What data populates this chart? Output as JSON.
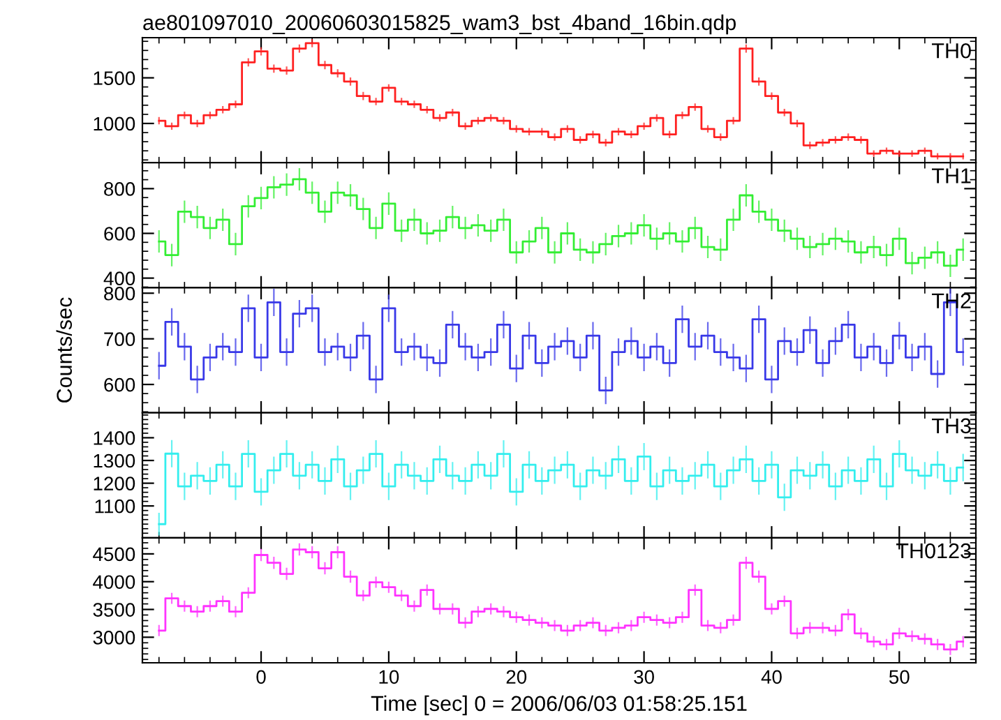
{
  "chart_data": [
    {
      "type": "step",
      "title": "ae801097010_20060603015825_wam3_bst_4band_16bin.qdp",
      "xlim": [
        -9.3,
        56
      ],
      "xticks": [
        0,
        10,
        20,
        30,
        40,
        50
      ],
      "ylim": [
        570,
        1940
      ],
      "yticks": [
        1000,
        1500
      ],
      "tick_labels": "y",
      "x": [
        -8,
        -7,
        -6,
        -5,
        -4,
        -3,
        -2,
        -1,
        0,
        1,
        2,
        3,
        4,
        5,
        6,
        7,
        8,
        9,
        10,
        11,
        12,
        13,
        14,
        15,
        16,
        17,
        18,
        19,
        20,
        21,
        22,
        23,
        24,
        25,
        26,
        27,
        28,
        29,
        30,
        31,
        32,
        33,
        34,
        35,
        36,
        37,
        38,
        39,
        40,
        41,
        42,
        43,
        44,
        45,
        46,
        47,
        48,
        49,
        50,
        51,
        52,
        53,
        54,
        55
      ],
      "series": [
        {
          "name": "TH0",
          "color": "#ff2020",
          "values": [
            1030,
            970,
            1090,
            1000,
            1090,
            1150,
            1210,
            1670,
            1790,
            1600,
            1580,
            1820,
            1880,
            1640,
            1550,
            1460,
            1300,
            1240,
            1390,
            1240,
            1210,
            1150,
            1060,
            1120,
            970,
            1030,
            1060,
            1030,
            940,
            910,
            910,
            850,
            940,
            820,
            880,
            790,
            910,
            880,
            970,
            1060,
            880,
            1090,
            1180,
            940,
            850,
            1030,
            1820,
            1460,
            1300,
            1120,
            1000,
            760,
            790,
            820,
            850,
            820,
            670,
            700,
            670,
            670,
            700,
            640,
            640,
            640
          ],
          "errors": [
            40,
            40,
            40,
            40,
            40,
            40,
            40,
            45,
            45,
            45,
            45,
            45,
            45,
            45,
            45,
            45,
            45,
            40,
            40,
            40,
            40,
            40,
            40,
            40,
            40,
            40,
            40,
            40,
            40,
            40,
            40,
            40,
            40,
            40,
            40,
            40,
            40,
            40,
            40,
            40,
            40,
            40,
            40,
            40,
            40,
            40,
            45,
            45,
            40,
            40,
            40,
            40,
            40,
            40,
            40,
            40,
            35,
            35,
            35,
            35,
            35,
            35,
            35,
            35
          ]
        }
      ]
    },
    {
      "type": "step",
      "xlim": [
        -9.3,
        56
      ],
      "xticks": [
        0,
        10,
        20,
        30,
        40,
        50
      ],
      "ylim": [
        357,
        916
      ],
      "yticks": [
        400,
        600,
        800
      ],
      "tick_labels": "y",
      "x": [
        -8,
        -7,
        -6,
        -5,
        -4,
        -3,
        -2,
        -1,
        0,
        1,
        2,
        3,
        4,
        5,
        6,
        7,
        8,
        9,
        10,
        11,
        12,
        13,
        14,
        15,
        16,
        17,
        18,
        19,
        20,
        21,
        22,
        23,
        24,
        25,
        26,
        27,
        28,
        29,
        30,
        31,
        32,
        33,
        34,
        35,
        36,
        37,
        38,
        39,
        40,
        41,
        42,
        43,
        44,
        45,
        46,
        47,
        48,
        49,
        50,
        51,
        52,
        53,
        54,
        55
      ],
      "series": [
        {
          "name": "TH1",
          "color": "#33ee33",
          "values": [
            564,
            503,
            697,
            673,
            624,
            661,
            552,
            721,
            758,
            806,
            818,
            842,
            782,
            697,
            782,
            770,
            709,
            624,
            733,
            612,
            661,
            600,
            612,
            673,
            624,
            636,
            612,
            661,
            515,
            564,
            624,
            515,
            600,
            527,
            515,
            552,
            588,
            600,
            636,
            576,
            600,
            564,
            624,
            539,
            527,
            661,
            770,
            697,
            661,
            612,
            576,
            539,
            552,
            576,
            564,
            515,
            539,
            503,
            576,
            467,
            491,
            515,
            455,
            527
          ],
          "errors": [
            50,
            50,
            50,
            50,
            50,
            50,
            50,
            50,
            50,
            50,
            50,
            50,
            50,
            50,
            50,
            50,
            50,
            50,
            50,
            50,
            50,
            50,
            50,
            50,
            50,
            50,
            50,
            50,
            50,
            50,
            50,
            50,
            50,
            50,
            50,
            50,
            50,
            50,
            50,
            50,
            50,
            50,
            50,
            50,
            50,
            50,
            50,
            50,
            50,
            50,
            50,
            50,
            50,
            50,
            50,
            50,
            50,
            50,
            50,
            50,
            50,
            50,
            50,
            50
          ]
        }
      ]
    },
    {
      "type": "step",
      "xlim": [
        -9.3,
        56
      ],
      "xticks": [
        0,
        10,
        20,
        30,
        40,
        50
      ],
      "ylim": [
        538,
        812
      ],
      "yticks": [
        600,
        700,
        800
      ],
      "tick_labels": "y",
      "ylabel": "Counts/sec",
      "x": [
        -8,
        -7,
        -6,
        -5,
        -4,
        -3,
        -2,
        -1,
        0,
        1,
        2,
        3,
        4,
        5,
        6,
        7,
        8,
        9,
        10,
        11,
        12,
        13,
        14,
        15,
        16,
        17,
        18,
        19,
        20,
        21,
        22,
        23,
        24,
        25,
        26,
        27,
        28,
        29,
        30,
        31,
        32,
        33,
        34,
        35,
        36,
        37,
        38,
        39,
        40,
        41,
        42,
        43,
        44,
        45,
        46,
        47,
        48,
        49,
        50,
        51,
        52,
        53,
        54,
        55
      ],
      "series": [
        {
          "name": "TH2",
          "color": "#3838e8",
          "values": [
            641,
            737,
            683,
            611,
            659,
            683,
            671,
            767,
            659,
            780,
            671,
            755,
            767,
            671,
            683,
            659,
            707,
            611,
            767,
            671,
            683,
            659,
            647,
            731,
            683,
            659,
            671,
            731,
            635,
            707,
            647,
            683,
            695,
            659,
            707,
            587,
            671,
            695,
            659,
            683,
            647,
            743,
            683,
            707,
            671,
            659,
            635,
            743,
            611,
            695,
            671,
            719,
            647,
            695,
            731,
            659,
            683,
            647,
            707,
            659,
            683,
            623,
            780,
            671
          ],
          "errors": [
            30,
            30,
            30,
            30,
            30,
            30,
            30,
            30,
            30,
            30,
            30,
            30,
            30,
            30,
            30,
            30,
            30,
            30,
            30,
            30,
            30,
            30,
            30,
            30,
            30,
            30,
            30,
            30,
            30,
            30,
            30,
            30,
            30,
            30,
            30,
            30,
            30,
            30,
            30,
            30,
            30,
            30,
            30,
            30,
            30,
            30,
            30,
            30,
            30,
            30,
            30,
            30,
            30,
            30,
            30,
            30,
            30,
            30,
            30,
            30,
            30,
            30,
            30,
            30
          ]
        }
      ]
    },
    {
      "type": "step",
      "xlim": [
        -9.3,
        56
      ],
      "xticks": [
        0,
        10,
        20,
        30,
        40,
        50
      ],
      "ylim": [
        960,
        1510
      ],
      "yticks": [
        1100,
        1200,
        1300,
        1400
      ],
      "tick_labels": "y",
      "x": [
        -8,
        -7,
        -6,
        -5,
        -4,
        -3,
        -2,
        -1,
        0,
        1,
        2,
        3,
        4,
        5,
        6,
        7,
        8,
        9,
        10,
        11,
        12,
        13,
        14,
        15,
        16,
        17,
        18,
        19,
        20,
        21,
        22,
        23,
        24,
        25,
        26,
        27,
        28,
        29,
        30,
        31,
        32,
        33,
        34,
        35,
        36,
        37,
        38,
        39,
        40,
        41,
        42,
        43,
        44,
        45,
        46,
        47,
        48,
        49,
        50,
        51,
        52,
        53,
        54,
        55
      ],
      "series": [
        {
          "name": "TH3",
          "color": "#33eeee",
          "values": [
            1020,
            1330,
            1186,
            1233,
            1210,
            1281,
            1186,
            1329,
            1162,
            1257,
            1329,
            1233,
            1281,
            1210,
            1305,
            1186,
            1257,
            1329,
            1186,
            1281,
            1233,
            1210,
            1305,
            1233,
            1210,
            1281,
            1233,
            1329,
            1162,
            1281,
            1210,
            1257,
            1281,
            1186,
            1257,
            1233,
            1305,
            1210,
            1317,
            1186,
            1257,
            1210,
            1233,
            1281,
            1186,
            1257,
            1305,
            1210,
            1281,
            1138,
            1257,
            1233,
            1281,
            1186,
            1257,
            1210,
            1305,
            1186,
            1329,
            1257,
            1233,
            1281,
            1210,
            1269
          ],
          "errors": [
            50,
            60,
            60,
            60,
            60,
            60,
            60,
            60,
            60,
            60,
            60,
            60,
            60,
            60,
            60,
            60,
            60,
            60,
            60,
            60,
            60,
            60,
            60,
            60,
            60,
            60,
            60,
            60,
            60,
            60,
            60,
            60,
            60,
            60,
            60,
            60,
            60,
            60,
            60,
            60,
            60,
            60,
            60,
            60,
            60,
            60,
            60,
            60,
            60,
            60,
            60,
            60,
            60,
            60,
            60,
            60,
            60,
            60,
            60,
            60,
            60,
            60,
            60,
            60
          ]
        }
      ]
    },
    {
      "type": "step",
      "xlim": [
        -9.3,
        56
      ],
      "xticks": [
        0,
        10,
        20,
        30,
        40,
        50
      ],
      "ylim": [
        2540,
        4790
      ],
      "yticks": [
        3000,
        3500,
        4000,
        4500
      ],
      "xlabel": "Time [sec] 0 = 2006/06/03 01:58:25.151",
      "x": [
        -8,
        -7,
        -6,
        -5,
        -4,
        -3,
        -2,
        -1,
        0,
        1,
        2,
        3,
        4,
        5,
        6,
        7,
        8,
        9,
        10,
        11,
        12,
        13,
        14,
        15,
        16,
        17,
        18,
        19,
        20,
        21,
        22,
        23,
        24,
        25,
        26,
        27,
        28,
        29,
        30,
        31,
        32,
        33,
        34,
        35,
        36,
        37,
        38,
        39,
        40,
        41,
        42,
        43,
        44,
        45,
        46,
        47,
        48,
        49,
        50,
        51,
        52,
        53,
        54,
        55
      ],
      "series": [
        {
          "name": "TH0123",
          "color": "#ff33ff",
          "values": [
            3120,
            3700,
            3560,
            3460,
            3560,
            3650,
            3460,
            3800,
            4480,
            4340,
            4140,
            4580,
            4530,
            4240,
            4530,
            4090,
            3750,
            3990,
            3900,
            3750,
            3560,
            3850,
            3510,
            3510,
            3260,
            3460,
            3510,
            3460,
            3360,
            3310,
            3260,
            3210,
            3120,
            3210,
            3260,
            3120,
            3170,
            3210,
            3360,
            3310,
            3260,
            3360,
            3850,
            3210,
            3170,
            3310,
            4340,
            4090,
            3510,
            3650,
            3070,
            3170,
            3170,
            3120,
            3410,
            3070,
            2920,
            2870,
            3070,
            3020,
            2970,
            2870,
            2780,
            2920
          ],
          "errors": [
            100,
            100,
            100,
            100,
            100,
            100,
            100,
            100,
            110,
            110,
            110,
            110,
            110,
            110,
            110,
            110,
            100,
            100,
            100,
            100,
            100,
            100,
            100,
            100,
            100,
            100,
            100,
            100,
            100,
            100,
            100,
            100,
            100,
            100,
            100,
            100,
            100,
            100,
            100,
            100,
            100,
            100,
            100,
            100,
            100,
            100,
            110,
            110,
            100,
            100,
            100,
            100,
            100,
            100,
            100,
            100,
            100,
            100,
            100,
            100,
            100,
            100,
            100,
            100
          ]
        }
      ]
    }
  ]
}
